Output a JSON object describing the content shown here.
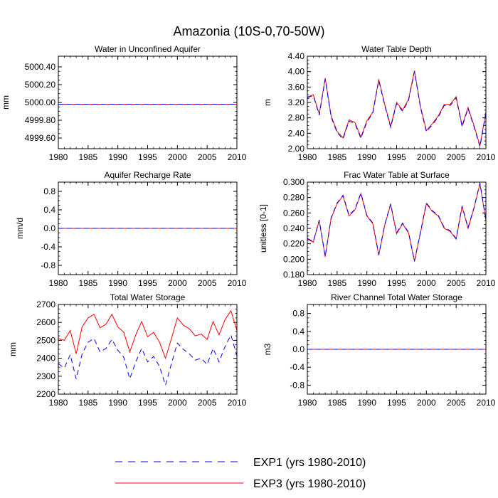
{
  "figure": {
    "title": "Amazonia (10S-0,70-50W)"
  },
  "legend": {
    "entries": [
      {
        "label": "EXP1 (yrs 1980-2010)",
        "color": "#0000ff",
        "dash": "dashed"
      },
      {
        "label": "EXP3 (yrs 1980-2010)",
        "color": "#ff0000",
        "dash": "solid"
      }
    ]
  },
  "chart_data": [
    {
      "type": "line",
      "title": "Water in Unconfined Aquifer",
      "xlabel": "",
      "ylabel": "mm",
      "xlim": [
        1980,
        2010
      ],
      "ylim": [
        4999.48,
        5000.52
      ],
      "xticks": [
        1980,
        1985,
        1990,
        1995,
        2000,
        2005,
        2010
      ],
      "yticks": [
        4999.6,
        4999.8,
        5000.0,
        5000.2,
        5000.4
      ],
      "ytick_labels": [
        "4999.60",
        "4999.80",
        "5000.00",
        "5000.20",
        "5000.40"
      ],
      "x": [
        1980,
        1981,
        1982,
        1983,
        1984,
        1985,
        1986,
        1987,
        1988,
        1989,
        1990,
        1991,
        1992,
        1993,
        1994,
        1995,
        1996,
        1997,
        1998,
        1999,
        2000,
        2001,
        2002,
        2003,
        2004,
        2005,
        2006,
        2007,
        2008,
        2009,
        2010
      ],
      "series": [
        {
          "name": "EXP3 (yrs 1980-2010)",
          "color": "#ff0000",
          "dash": "solid",
          "values": [
            4999.98,
            4999.98,
            4999.98,
            4999.98,
            4999.98,
            4999.98,
            4999.98,
            4999.98,
            4999.98,
            4999.98,
            4999.98,
            4999.98,
            4999.98,
            4999.98,
            4999.98,
            4999.98,
            4999.98,
            4999.98,
            4999.98,
            4999.98,
            4999.98,
            4999.98,
            4999.98,
            4999.98,
            4999.98,
            4999.98,
            4999.98,
            4999.98,
            4999.98,
            4999.98,
            4999.98
          ]
        },
        {
          "name": "EXP1 (yrs 1980-2010)",
          "color": "#0000ff",
          "dash": "dashed",
          "values": [
            4999.98,
            4999.98,
            4999.98,
            4999.98,
            4999.98,
            4999.98,
            4999.98,
            4999.98,
            4999.98,
            4999.98,
            4999.98,
            4999.98,
            4999.98,
            4999.98,
            4999.98,
            4999.98,
            4999.98,
            4999.98,
            4999.98,
            4999.98,
            4999.98,
            4999.98,
            4999.98,
            4999.98,
            4999.98,
            4999.98,
            4999.98,
            4999.98,
            4999.98,
            4999.98,
            4999.98
          ]
        }
      ]
    },
    {
      "type": "line",
      "title": "Water Table Depth",
      "xlabel": "",
      "ylabel": "m",
      "xlim": [
        1980,
        2010
      ],
      "ylim": [
        2.0,
        4.4
      ],
      "xticks": [
        1980,
        1985,
        1990,
        1995,
        2000,
        2005,
        2010
      ],
      "yticks": [
        2.0,
        2.4,
        2.8,
        3.2,
        3.6,
        4.0,
        4.4
      ],
      "ytick_labels": [
        "2.00",
        "2.40",
        "2.80",
        "3.20",
        "3.60",
        "4.00",
        "4.40"
      ],
      "x": [
        1980,
        1981,
        1982,
        1983,
        1984,
        1985,
        1986,
        1987,
        1988,
        1989,
        1990,
        1991,
        1992,
        1993,
        1994,
        1995,
        1996,
        1997,
        1998,
        1999,
        2000,
        2001,
        2002,
        2003,
        2004,
        2005,
        2006,
        2007,
        2008,
        2009,
        2010
      ],
      "series": [
        {
          "name": "EXP3 (yrs 1980-2010)",
          "color": "#ff0000",
          "dash": "solid",
          "values": [
            3.34,
            3.4,
            2.9,
            3.83,
            2.85,
            2.45,
            2.28,
            2.75,
            2.68,
            2.3,
            2.72,
            2.95,
            3.8,
            3.15,
            2.58,
            3.2,
            3.0,
            3.28,
            4.03,
            3.1,
            2.47,
            2.65,
            2.85,
            3.15,
            3.15,
            3.35,
            2.6,
            3.07,
            2.6,
            2.08,
            2.95
          ]
        },
        {
          "name": "EXP1 (yrs 1980-2010)",
          "color": "#0000ff",
          "dash": "dashed",
          "values": [
            3.32,
            3.38,
            2.87,
            3.8,
            2.82,
            2.42,
            2.25,
            2.72,
            2.65,
            2.27,
            2.69,
            2.92,
            3.77,
            3.12,
            2.55,
            3.17,
            2.97,
            3.25,
            4.0,
            3.07,
            2.44,
            2.62,
            2.82,
            3.12,
            3.12,
            3.32,
            2.57,
            3.04,
            2.57,
            2.05,
            2.92
          ]
        }
      ]
    },
    {
      "type": "line",
      "title": "Aquifer Recharge Rate",
      "xlabel": "",
      "ylabel": "mm/d",
      "xlim": [
        1980,
        2010
      ],
      "ylim": [
        -1.0,
        1.0
      ],
      "xticks": [
        1980,
        1985,
        1990,
        1995,
        2000,
        2005,
        2010
      ],
      "yticks": [
        -0.8,
        -0.4,
        0.0,
        0.4,
        0.8
      ],
      "ytick_labels": [
        "-0.8",
        "-0.4",
        "0.0",
        "0.4",
        "0.8"
      ],
      "x": [
        1980,
        1981,
        1982,
        1983,
        1984,
        1985,
        1986,
        1987,
        1988,
        1989,
        1990,
        1991,
        1992,
        1993,
        1994,
        1995,
        1996,
        1997,
        1998,
        1999,
        2000,
        2001,
        2002,
        2003,
        2004,
        2005,
        2006,
        2007,
        2008,
        2009,
        2010
      ],
      "series": [
        {
          "name": "EXP3 (yrs 1980-2010)",
          "color": "#ff0000",
          "dash": "solid",
          "values": [
            0,
            0,
            0,
            0,
            0,
            0,
            0,
            0,
            0,
            0,
            0,
            0,
            0,
            0,
            0,
            0,
            0,
            0,
            0,
            0,
            0,
            0,
            0,
            0,
            0,
            0,
            0,
            0,
            0,
            0,
            0
          ]
        },
        {
          "name": "EXP1 (yrs 1980-2010)",
          "color": "#0000ff",
          "dash": "dashed",
          "values": [
            0,
            0,
            0,
            0,
            0,
            0,
            0,
            0,
            0,
            0,
            0,
            0,
            0,
            0,
            0,
            0,
            0,
            0,
            0,
            0,
            0,
            0,
            0,
            0,
            0,
            0,
            0,
            0,
            0,
            0,
            0
          ]
        }
      ]
    },
    {
      "type": "line",
      "title": "Frac Water Table at Surface",
      "xlabel": "",
      "ylabel": "unitless [0-1]",
      "xlim": [
        1980,
        2010
      ],
      "ylim": [
        0.18,
        0.3
      ],
      "xticks": [
        1980,
        1985,
        1990,
        1995,
        2000,
        2005,
        2010
      ],
      "yticks": [
        0.18,
        0.2,
        0.22,
        0.24,
        0.26,
        0.28,
        0.3
      ],
      "ytick_labels": [
        "0.180",
        "0.200",
        "0.220",
        "0.240",
        "0.260",
        "0.280",
        "0.300"
      ],
      "x": [
        1980,
        1981,
        1982,
        1983,
        1984,
        1985,
        1986,
        1987,
        1988,
        1989,
        1990,
        1991,
        1992,
        1993,
        1994,
        1995,
        1996,
        1997,
        1998,
        1999,
        2000,
        2001,
        2002,
        2003,
        2004,
        2005,
        2006,
        2007,
        2008,
        2009,
        2010
      ],
      "series": [
        {
          "name": "EXP3 (yrs 1980-2010)",
          "color": "#ff0000",
          "dash": "solid",
          "values": [
            0.226,
            0.222,
            0.25,
            0.203,
            0.253,
            0.272,
            0.282,
            0.256,
            0.264,
            0.285,
            0.256,
            0.246,
            0.205,
            0.244,
            0.271,
            0.233,
            0.246,
            0.234,
            0.197,
            0.234,
            0.272,
            0.262,
            0.256,
            0.24,
            0.236,
            0.226,
            0.268,
            0.24,
            0.266,
            0.298,
            0.25
          ]
        },
        {
          "name": "EXP1 (yrs 1980-2010)",
          "color": "#0000ff",
          "dash": "dashed",
          "values": [
            0.227,
            0.223,
            0.251,
            0.204,
            0.254,
            0.273,
            0.283,
            0.257,
            0.265,
            0.286,
            0.257,
            0.247,
            0.206,
            0.245,
            0.272,
            0.234,
            0.247,
            0.235,
            0.198,
            0.235,
            0.273,
            0.263,
            0.257,
            0.241,
            0.237,
            0.227,
            0.269,
            0.241,
            0.267,
            0.299,
            0.251
          ]
        }
      ]
    },
    {
      "type": "line",
      "title": "Total Water Storage",
      "xlabel": "",
      "ylabel": "mm",
      "xlim": [
        1980,
        2010
      ],
      "ylim": [
        2200,
        2700
      ],
      "xticks": [
        1980,
        1985,
        1990,
        1995,
        2000,
        2005,
        2010
      ],
      "yticks": [
        2200,
        2300,
        2400,
        2500,
        2600,
        2700
      ],
      "ytick_labels": [
        "2200",
        "2300",
        "2400",
        "2500",
        "2600",
        "2700"
      ],
      "x": [
        1980,
        1981,
        1982,
        1983,
        1984,
        1985,
        1986,
        1987,
        1988,
        1989,
        1990,
        1991,
        1992,
        1993,
        1994,
        1995,
        1996,
        1997,
        1998,
        1999,
        2000,
        2001,
        2002,
        2003,
        2004,
        2005,
        2006,
        2007,
        2008,
        2009,
        2010
      ],
      "series": [
        {
          "name": "EXP3 (yrs 1980-2010)",
          "color": "#ff0000",
          "dash": "solid",
          "values": [
            2510,
            2500,
            2555,
            2425,
            2575,
            2625,
            2645,
            2570,
            2590,
            2645,
            2575,
            2545,
            2435,
            2530,
            2605,
            2520,
            2545,
            2490,
            2400,
            2510,
            2625,
            2585,
            2565,
            2525,
            2535,
            2505,
            2605,
            2530,
            2615,
            2665,
            2555
          ]
        },
        {
          "name": "EXP1 (yrs 1980-2010)",
          "color": "#0000ff",
          "dash": "dashed",
          "values": [
            2370,
            2345,
            2420,
            2285,
            2425,
            2490,
            2510,
            2435,
            2455,
            2505,
            2445,
            2405,
            2285,
            2380,
            2455,
            2380,
            2410,
            2355,
            2250,
            2370,
            2485,
            2450,
            2425,
            2390,
            2400,
            2365,
            2455,
            2380,
            2465,
            2530,
            2415
          ]
        }
      ]
    },
    {
      "type": "line",
      "title": "River Channel Total Water Storage",
      "xlabel": "",
      "ylabel": "m3",
      "xlim": [
        1980,
        2010
      ],
      "ylim": [
        -1.0,
        1.0
      ],
      "xticks": [
        1980,
        1985,
        1990,
        1995,
        2000,
        2005,
        2010
      ],
      "yticks": [
        -0.8,
        -0.4,
        0.0,
        0.4,
        0.8
      ],
      "ytick_labels": [
        "-0.8",
        "-0.4",
        "0.0",
        "0.4",
        "0.8"
      ],
      "x": [
        1980,
        1981,
        1982,
        1983,
        1984,
        1985,
        1986,
        1987,
        1988,
        1989,
        1990,
        1991,
        1992,
        1993,
        1994,
        1995,
        1996,
        1997,
        1998,
        1999,
        2000,
        2001,
        2002,
        2003,
        2004,
        2005,
        2006,
        2007,
        2008,
        2009,
        2010
      ],
      "series": [
        {
          "name": "EXP3 (yrs 1980-2010)",
          "color": "#ff0000",
          "dash": "solid",
          "values": [
            0,
            0,
            0,
            0,
            0,
            0,
            0,
            0,
            0,
            0,
            0,
            0,
            0,
            0,
            0,
            0,
            0,
            0,
            0,
            0,
            0,
            0,
            0,
            0,
            0,
            0,
            0,
            0,
            0,
            0,
            0
          ]
        },
        {
          "name": "EXP1 (yrs 1980-2010)",
          "color": "#0000ff",
          "dash": "dashed",
          "values": [
            0,
            0,
            0,
            0,
            0,
            0,
            0,
            0,
            0,
            0,
            0,
            0,
            0,
            0,
            0,
            0,
            0,
            0,
            0,
            0,
            0,
            0,
            0,
            0,
            0,
            0,
            0,
            0,
            0,
            0,
            0
          ]
        }
      ]
    }
  ]
}
